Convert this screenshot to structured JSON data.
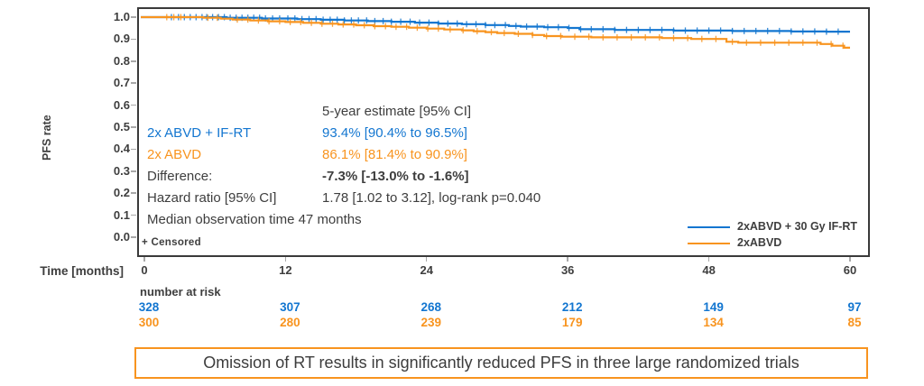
{
  "colors": {
    "blue": "#1376D0",
    "orange": "#F8941F",
    "dark": "#3E3E3E",
    "border": "#3A3A3A",
    "tick": "#A9A9A9"
  },
  "figure": {
    "y_axis": {
      "label": "PFS rate",
      "tick_labels": [
        "1.0",
        "0.9",
        "0.8",
        "0.7",
        "0.6",
        "0.5",
        "0.4",
        "0.3",
        "0.2",
        "0.1",
        "0.0"
      ]
    },
    "x_axis": {
      "label": "Time [months]",
      "tick_labels": [
        "0",
        "12",
        "24",
        "36",
        "48",
        "60"
      ]
    },
    "stats": {
      "header": "5-year estimate [95% CI]",
      "rows": [
        {
          "label": "2x ABVD + IF-RT",
          "value": "93.4% [90.4% to 96.5%]"
        },
        {
          "label": "2x ABVD",
          "value": "86.1% [81.4% to 90.9%]"
        },
        {
          "label": "Difference:",
          "value": "-7.3% [-13.0% to -1.6%]"
        },
        {
          "label": "Hazard ratio [95% CI]",
          "value": "1.78 [1.02 to 3.12], log-rank p=0.040"
        }
      ],
      "footer": "Median observation time 47 months"
    },
    "censored_note": "+ Censored",
    "legend": {
      "items": [
        {
          "label": "2xABVD + 30 Gy IF-RT",
          "color": "#1376D0"
        },
        {
          "label": "2xABVD",
          "color": "#F8941F"
        }
      ]
    },
    "at_risk": {
      "title": "number at risk",
      "rows": [
        {
          "name": "2xABVD + 30 Gy IF-RT",
          "color": "#1376D0",
          "values": [
            "328",
            "307",
            "268",
            "212",
            "149",
            "97"
          ]
        },
        {
          "name": "2xABVD",
          "color": "#F8941F",
          "values": [
            "300",
            "280",
            "239",
            "179",
            "134",
            "85"
          ]
        }
      ]
    },
    "conclusion": "Omission of RT results in significantly reduced PFS in three large randomized trials"
  },
  "chart_data": {
    "type": "line",
    "subtype": "kaplan-meier-step",
    "title": "",
    "xlabel": "Time [months]",
    "ylabel": "PFS rate",
    "xlim": [
      0,
      60
    ],
    "ylim": [
      0.0,
      1.0
    ],
    "x_ticks": [
      0,
      12,
      24,
      36,
      48,
      60
    ],
    "y_ticks": [
      1.0,
      0.9,
      0.8,
      0.7,
      0.6,
      0.5,
      0.4,
      0.3,
      0.2,
      0.1,
      0.0
    ],
    "grid": false,
    "legend_position": "lower right inside plot",
    "annotations": {
      "five_year_header": "5-year estimate [95% CI]",
      "difference": "-7.3% [-13.0% to -1.6%]",
      "hazard_ratio": "1.78 [1.02 to 3.12]",
      "log_rank_p": 0.04,
      "median_observation_months": 47
    },
    "series": [
      {
        "name": "2xABVD + 30 Gy IF-RT",
        "color": "#1376D0",
        "five_year_estimate_pct": 93.4,
        "ci_pct": [
          90.4,
          96.5
        ],
        "number_at_risk": [
          328,
          307,
          268,
          212,
          149,
          97
        ],
        "steps": [
          [
            0,
            1.0
          ],
          [
            7,
            0.997
          ],
          [
            10,
            0.994
          ],
          [
            13,
            0.991
          ],
          [
            15,
            0.988
          ],
          [
            17,
            0.985
          ],
          [
            19,
            0.982
          ],
          [
            21,
            0.979
          ],
          [
            23,
            0.975
          ],
          [
            25,
            0.971
          ],
          [
            27,
            0.968
          ],
          [
            29,
            0.964
          ],
          [
            31,
            0.96
          ],
          [
            32,
            0.957
          ],
          [
            34,
            0.954
          ],
          [
            36,
            0.951
          ],
          [
            37,
            0.945
          ],
          [
            40,
            0.942
          ],
          [
            45,
            0.939
          ],
          [
            50,
            0.937
          ],
          [
            55,
            0.935
          ],
          [
            58,
            0.934
          ]
        ],
        "censor_times": [
          2.3,
          2.9,
          3.4,
          3.9,
          4.4,
          4.9,
          5.3,
          5.8,
          6.3,
          6.8,
          7.3,
          7.8,
          8.3,
          8.8,
          9.3,
          9.8,
          10.3,
          10.9,
          11.5,
          12.2,
          12.8,
          13.4,
          14,
          14.6,
          15.2,
          15.8,
          16.4,
          17,
          17.6,
          18.2,
          18.9,
          19.6,
          20.3,
          21,
          21.8,
          22.6,
          23.4,
          24.2,
          25,
          25.8,
          26.6,
          27.4,
          28.2,
          29,
          29.8,
          30.7,
          31.6,
          32.5,
          33.4,
          34.3,
          35.2,
          36.1,
          37.1,
          38,
          39,
          40,
          41,
          42,
          43,
          44,
          45,
          46,
          47,
          48,
          49,
          50,
          51,
          52,
          53,
          54,
          55,
          56,
          57,
          58,
          59
        ]
      },
      {
        "name": "2xABVD",
        "color": "#F8941F",
        "five_year_estimate_pct": 86.1,
        "ci_pct": [
          81.4,
          90.9
        ],
        "number_at_risk": [
          300,
          280,
          239,
          179,
          134,
          85
        ],
        "steps": [
          [
            0,
            1.0
          ],
          [
            5,
            0.997
          ],
          [
            6.5,
            0.993
          ],
          [
            7.5,
            0.989
          ],
          [
            9,
            0.985
          ],
          [
            10.5,
            0.981
          ],
          [
            12,
            0.978
          ],
          [
            13.5,
            0.974
          ],
          [
            15,
            0.97
          ],
          [
            16.5,
            0.967
          ],
          [
            18,
            0.963
          ],
          [
            19.5,
            0.959
          ],
          [
            21,
            0.956
          ],
          [
            22.5,
            0.952
          ],
          [
            24,
            0.948
          ],
          [
            25.5,
            0.944
          ],
          [
            27,
            0.94
          ],
          [
            28,
            0.936
          ],
          [
            29,
            0.932
          ],
          [
            30,
            0.928
          ],
          [
            31.5,
            0.924
          ],
          [
            33,
            0.919
          ],
          [
            34,
            0.914
          ],
          [
            35.5,
            0.911
          ],
          [
            38,
            0.908
          ],
          [
            44,
            0.905
          ],
          [
            46.5,
            0.901
          ],
          [
            49.5,
            0.888
          ],
          [
            50.5,
            0.884
          ],
          [
            57.5,
            0.878
          ],
          [
            58.5,
            0.87
          ],
          [
            59.5,
            0.861
          ]
        ],
        "censor_times": [
          1.9,
          2.5,
          3.1,
          5.4,
          6.2,
          7.9,
          8.8,
          9.7,
          10.6,
          11.5,
          12.4,
          13.3,
          14.2,
          15.1,
          16,
          16.9,
          17.8,
          18.7,
          19.6,
          20.5,
          21.4,
          22.3,
          23.2,
          24.1,
          25,
          26,
          27.1,
          28.3,
          29.5,
          30.6,
          31.8,
          33,
          34.2,
          35.4,
          36.6,
          37.8,
          39,
          40.2,
          41.4,
          42.6,
          43.8,
          45,
          46.2,
          47.4,
          48.6,
          50,
          51.2,
          52.4,
          53.6,
          54.8,
          56,
          57.2,
          58.4,
          59.4
        ]
      }
    ]
  }
}
